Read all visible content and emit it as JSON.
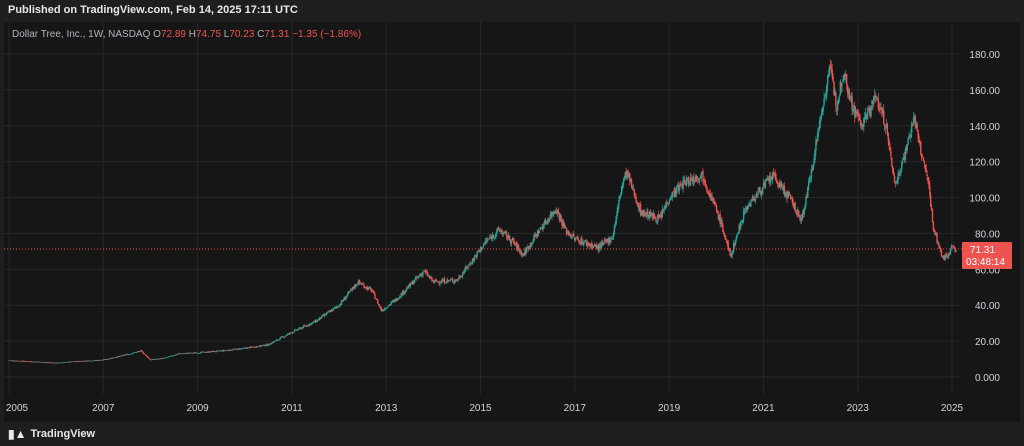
{
  "header": {
    "published": "Published on TradingView.com, Feb 14, 2025 17:11 UTC"
  },
  "legend": {
    "symbol": "Dollar Tree, Inc., 1W, NASDAQ",
    "o_label": "O",
    "o": "72.89",
    "h_label": "H",
    "h": "74.75",
    "l_label": "L",
    "l": "70.23",
    "c_label": "C",
    "c": "71.31",
    "change": "−1.35 (−1.86%)"
  },
  "price_tag": {
    "price": "71.31",
    "countdown": "03:48:14"
  },
  "footer": {
    "brand": "TradingView"
  },
  "colors": {
    "up": "#26a69a",
    "down": "#ef5350",
    "price_line": "#ef5350",
    "grid": "#262626"
  },
  "chart_data": {
    "type": "candlestick",
    "x_ticks": [
      "2005",
      "2007",
      "2009",
      "2011",
      "2013",
      "2015",
      "2017",
      "2019",
      "2021",
      "2023",
      "2025"
    ],
    "y_ticks": [
      "0.000",
      "20.00",
      "40.00",
      "60.00",
      "80.00",
      "100.00",
      "120.00",
      "140.00",
      "160.00",
      "180.00"
    ],
    "ylim": [
      -6,
      190
    ],
    "xlim": [
      2005.0,
      2025.4
    ],
    "last_price": 71.31,
    "grid": true,
    "series_close_path": [
      [
        2005.0,
        9.2
      ],
      [
        2005.5,
        8.6
      ],
      [
        2006.0,
        7.8
      ],
      [
        2006.5,
        8.8
      ],
      [
        2007.0,
        9.5
      ],
      [
        2007.5,
        12.5
      ],
      [
        2007.8,
        14.5
      ],
      [
        2008.0,
        9.5
      ],
      [
        2008.3,
        10.5
      ],
      [
        2008.6,
        13.0
      ],
      [
        2009.0,
        13.5
      ],
      [
        2009.5,
        14.5
      ],
      [
        2010.0,
        16.0
      ],
      [
        2010.5,
        18.0
      ],
      [
        2011.0,
        25.0
      ],
      [
        2011.5,
        31.0
      ],
      [
        2012.0,
        40.0
      ],
      [
        2012.4,
        53.0
      ],
      [
        2012.7,
        48.0
      ],
      [
        2012.9,
        37.0
      ],
      [
        2013.2,
        43.0
      ],
      [
        2013.5,
        51.0
      ],
      [
        2013.8,
        59.0
      ],
      [
        2014.0,
        53.0
      ],
      [
        2014.5,
        54.0
      ],
      [
        2014.8,
        64.0
      ],
      [
        2015.1,
        75.0
      ],
      [
        2015.4,
        82.0
      ],
      [
        2015.7,
        75.0
      ],
      [
        2015.9,
        68.0
      ],
      [
        2016.2,
        80.0
      ],
      [
        2016.6,
        94.0
      ],
      [
        2016.8,
        82.0
      ],
      [
        2017.0,
        77.0
      ],
      [
        2017.5,
        72.0
      ],
      [
        2017.8,
        78.0
      ],
      [
        2018.0,
        107.0
      ],
      [
        2018.1,
        114.0
      ],
      [
        2018.4,
        92.0
      ],
      [
        2018.8,
        88.0
      ],
      [
        2019.0,
        100.0
      ],
      [
        2019.3,
        108.0
      ],
      [
        2019.7,
        113.0
      ],
      [
        2019.9,
        100.0
      ],
      [
        2020.1,
        86.0
      ],
      [
        2020.3,
        67.0
      ],
      [
        2020.6,
        93.0
      ],
      [
        2020.9,
        103.0
      ],
      [
        2021.2,
        112.0
      ],
      [
        2021.6,
        98.0
      ],
      [
        2021.8,
        87.0
      ],
      [
        2021.95,
        105.0
      ],
      [
        2022.1,
        128.0
      ],
      [
        2022.3,
        157.0
      ],
      [
        2022.4,
        173.0
      ],
      [
        2022.55,
        152.0
      ],
      [
        2022.7,
        171.0
      ],
      [
        2022.9,
        150.0
      ],
      [
        2023.1,
        140.0
      ],
      [
        2023.3,
        152.0
      ],
      [
        2023.4,
        156.0
      ],
      [
        2023.6,
        140.0
      ],
      [
        2023.7,
        122.0
      ],
      [
        2023.8,
        107.0
      ],
      [
        2024.0,
        125.0
      ],
      [
        2024.2,
        145.0
      ],
      [
        2024.3,
        130.0
      ],
      [
        2024.5,
        108.0
      ],
      [
        2024.6,
        84.0
      ],
      [
        2024.8,
        66.0
      ],
      [
        2024.9,
        68.0
      ],
      [
        2025.0,
        72.0
      ],
      [
        2025.1,
        71.31
      ]
    ]
  }
}
